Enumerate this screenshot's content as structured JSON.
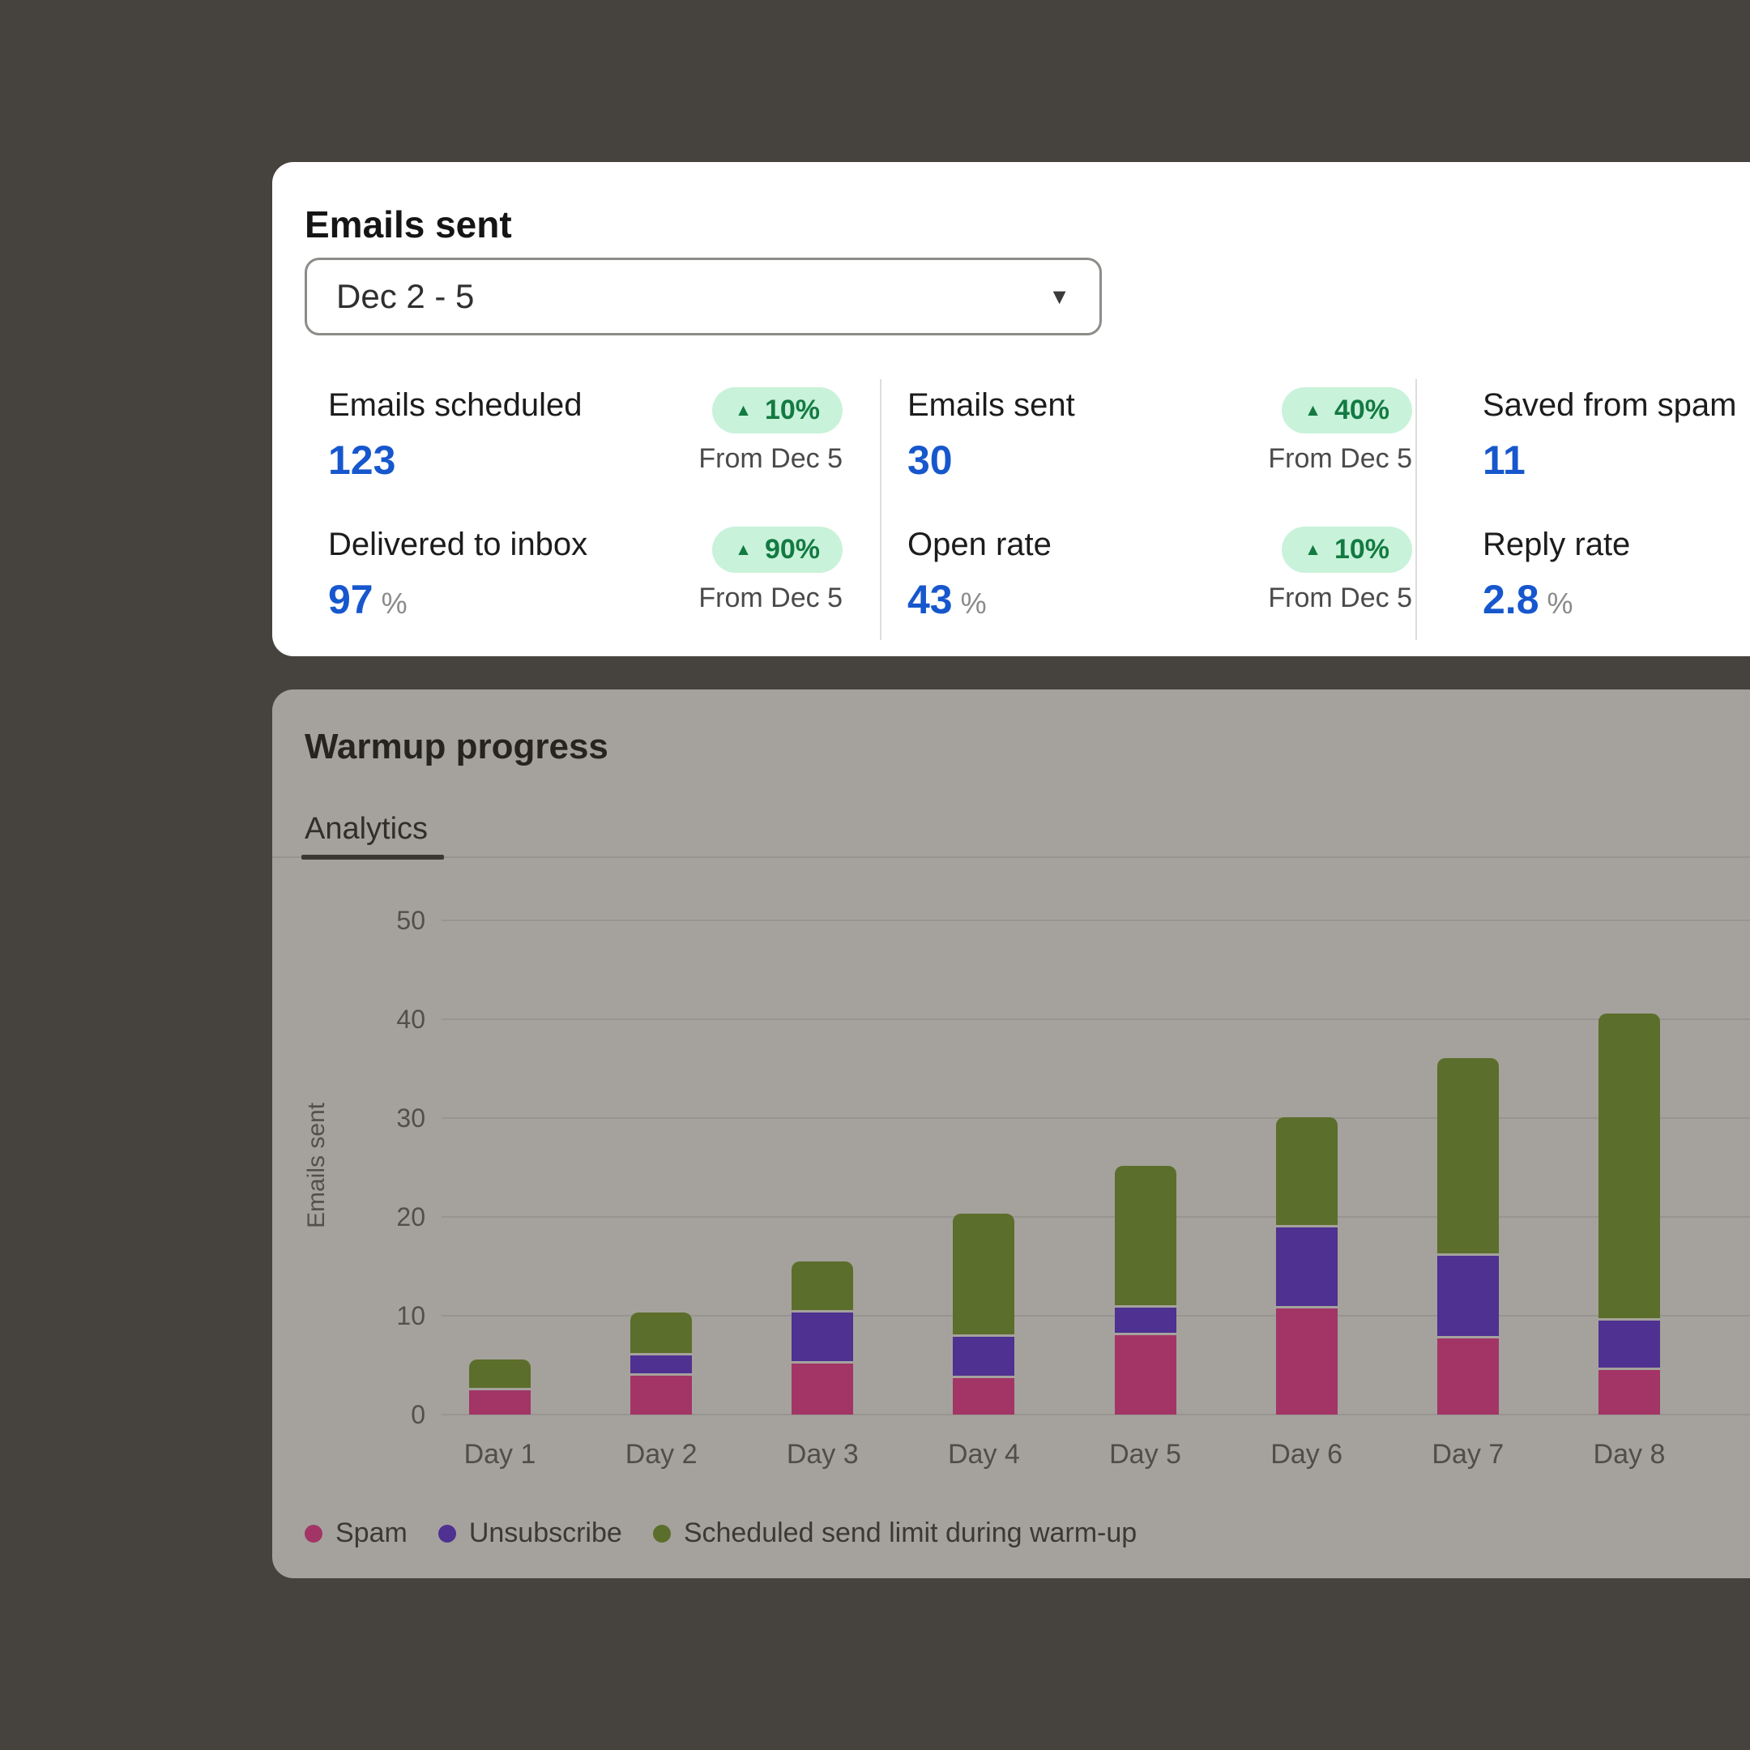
{
  "icons": {
    "dropdown_caret": "▼",
    "increase_arrow": "▲"
  },
  "summary_card": {
    "title": "Emails sent",
    "date_selector": {
      "value": "Dec 2 - 5"
    },
    "metrics": [
      {
        "label": "Emails scheduled",
        "value": "123",
        "unit": "",
        "badge": "10%",
        "badge_note": "From Dec 5"
      },
      {
        "label": "Emails sent",
        "value": "30",
        "unit": "",
        "badge": "40%",
        "badge_note": "From Dec 5"
      },
      {
        "label": "Saved from spam",
        "value": "11",
        "unit": ""
      },
      {
        "label": "Delivered to inbox",
        "value": "97",
        "unit": "%",
        "badge": "90%",
        "badge_note": "From Dec 5"
      },
      {
        "label": "Open rate",
        "value": "43",
        "unit": "%",
        "badge": "10%",
        "badge_note": "From Dec 5"
      },
      {
        "label": "Reply rate",
        "value": "2.8",
        "unit": "%"
      }
    ]
  },
  "warmup_card": {
    "title": "Warmup progress",
    "tabs": [
      {
        "label": "Analytics",
        "active": true
      }
    ]
  },
  "chart_data": {
    "type": "bar",
    "stacked": true,
    "categories": [
      "Day 1",
      "Day 2",
      "Day 3",
      "Day 4",
      "Day 5",
      "Day 6",
      "Day 7",
      "Day 8"
    ],
    "series": [
      {
        "name": "Spam",
        "color": "#A23566",
        "values": [
          2.5,
          3.9,
          5.2,
          3.7,
          8.0,
          10.7,
          7.7,
          4.5
        ]
      },
      {
        "name": "Unsubscribe",
        "color": "#4E3190",
        "values": [
          0,
          1.8,
          4.9,
          3.9,
          2.6,
          8.0,
          8.1,
          4.8
        ]
      },
      {
        "name": "Scheduled send limit during warm-up",
        "color": "#5C6E2B",
        "values": [
          2.8,
          4.1,
          4.9,
          12.2,
          14.1,
          10.9,
          19.8,
          30.8
        ]
      }
    ],
    "totals_approx": [
      5,
      10,
      15,
      20,
      25,
      30,
      35,
      40
    ],
    "title": "",
    "xlabel": "",
    "ylabel": "Emails sent",
    "yticks": [
      0,
      10,
      20,
      30,
      40,
      50
    ],
    "ylim": [
      0,
      50
    ],
    "grid": true,
    "legend_position": "bottom-left",
    "colors": {
      "page_background": "#46423D",
      "summary_card_background": "#FFFFFF",
      "warmup_card_background": "#A5A29D",
      "value_blue": "#1757CD",
      "badge_background": "#C8F2D9",
      "badge_text": "#137A42",
      "gridline": "#989590"
    }
  }
}
